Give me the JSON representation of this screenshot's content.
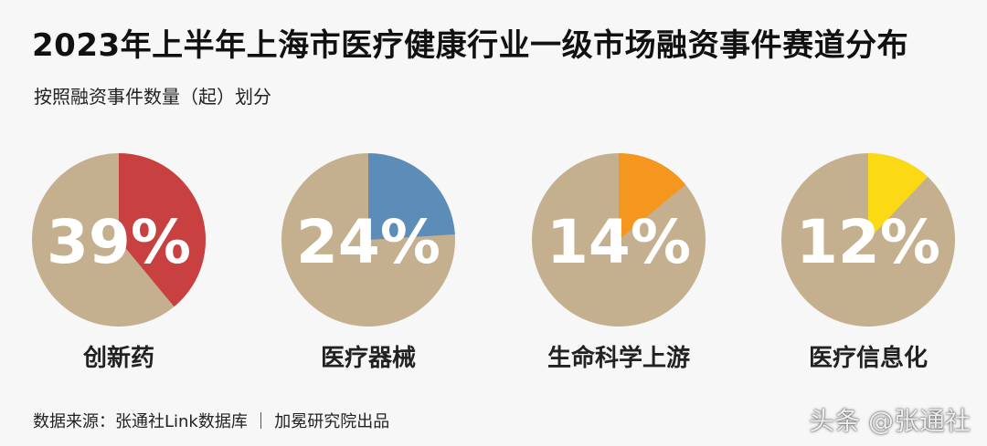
{
  "header": {
    "title": "2023年上半年上海市医疗健康行业一级市场融资事件赛道分布",
    "subtitle": "按照融资事件数量（起）划分"
  },
  "colors": {
    "base": "#c4b08f",
    "slices": [
      "#c84040",
      "#5b8db8",
      "#f5961e",
      "#fbd915"
    ]
  },
  "chart_data": {
    "type": "pie",
    "charts": [
      {
        "label": "创新药",
        "value": 39,
        "value_label": "39%"
      },
      {
        "label": "医疗器械",
        "value": 24,
        "value_label": "24%"
      },
      {
        "label": "生命科学上游",
        "value": 14,
        "value_label": "14%"
      },
      {
        "label": "医疗信息化",
        "value": 12,
        "value_label": "12%"
      }
    ]
  },
  "footer": {
    "source": "数据来源：张通社Link数据库 ｜ 加冕研究院出品",
    "watermark": "头条 @张通社"
  }
}
